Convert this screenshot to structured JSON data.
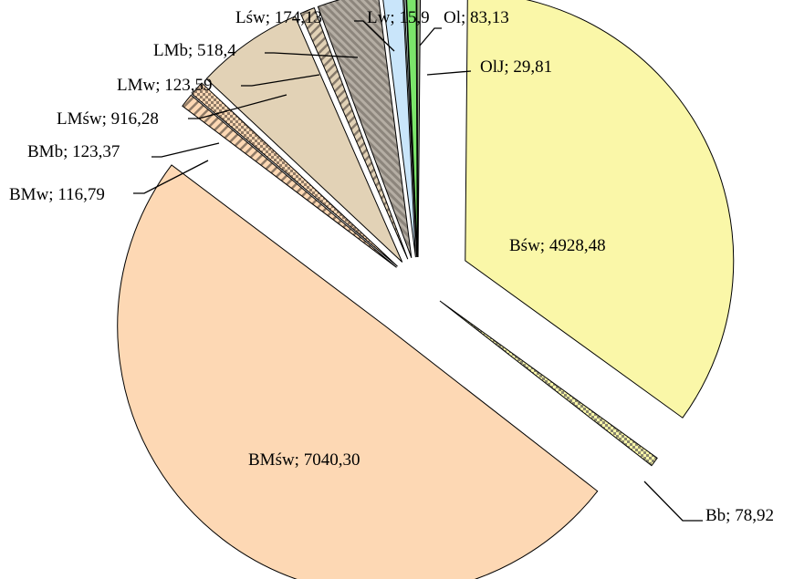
{
  "chart_data": {
    "type": "pie",
    "title": "",
    "legend": "none",
    "slices": [
      {
        "name": "Bśw",
        "value": 4928.48,
        "label": "Bśw; 4928,48",
        "color": "#FAF7A8",
        "pattern": "solid"
      },
      {
        "name": "Bb",
        "value": 78.92,
        "label": "Bb; 78,92",
        "color": "#FAF7A8",
        "pattern": "checker"
      },
      {
        "name": "BMśw",
        "value": 7040.3,
        "label": "BMśw; 7040,30",
        "color": "#FDD8B4",
        "pattern": "solid"
      },
      {
        "name": "BMw",
        "value": 116.79,
        "label": "BMw; 116,79",
        "color": "#FDD8B4",
        "pattern": "hatch"
      },
      {
        "name": "BMb",
        "value": 123.37,
        "label": "BMb; 123,37",
        "color": "#FDD8B4",
        "pattern": "checker"
      },
      {
        "name": "LMśw",
        "value": 916.28,
        "label": "LMśw; 916,28",
        "color": "#E2D2B6",
        "pattern": "solid"
      },
      {
        "name": "LMw",
        "value": 123.59,
        "label": "LMw; 123,59",
        "color": "#E2D2B6",
        "pattern": "hatch"
      },
      {
        "name": "LMb",
        "value": 518.4,
        "label": "LMb; 518,4",
        "color": "#A8A29A",
        "pattern": "gray-diagonal"
      },
      {
        "name": "Lśw",
        "value": 174.13,
        "label": "Lśw; 174,13",
        "color": "#C9E5FA",
        "pattern": "solid"
      },
      {
        "name": "Lw",
        "value": 15.9,
        "label": "Lw; 15,9",
        "color": "#CDE9E2",
        "pattern": "solid"
      },
      {
        "name": "Ol",
        "value": 83.13,
        "label": "Ol; 83,13",
        "color": "#7BE56A",
        "pattern": "solid"
      },
      {
        "name": "OlJ",
        "value": 29.81,
        "label": "OlJ; 29,81",
        "color": "#9DB08A",
        "pattern": "solid"
      }
    ]
  }
}
